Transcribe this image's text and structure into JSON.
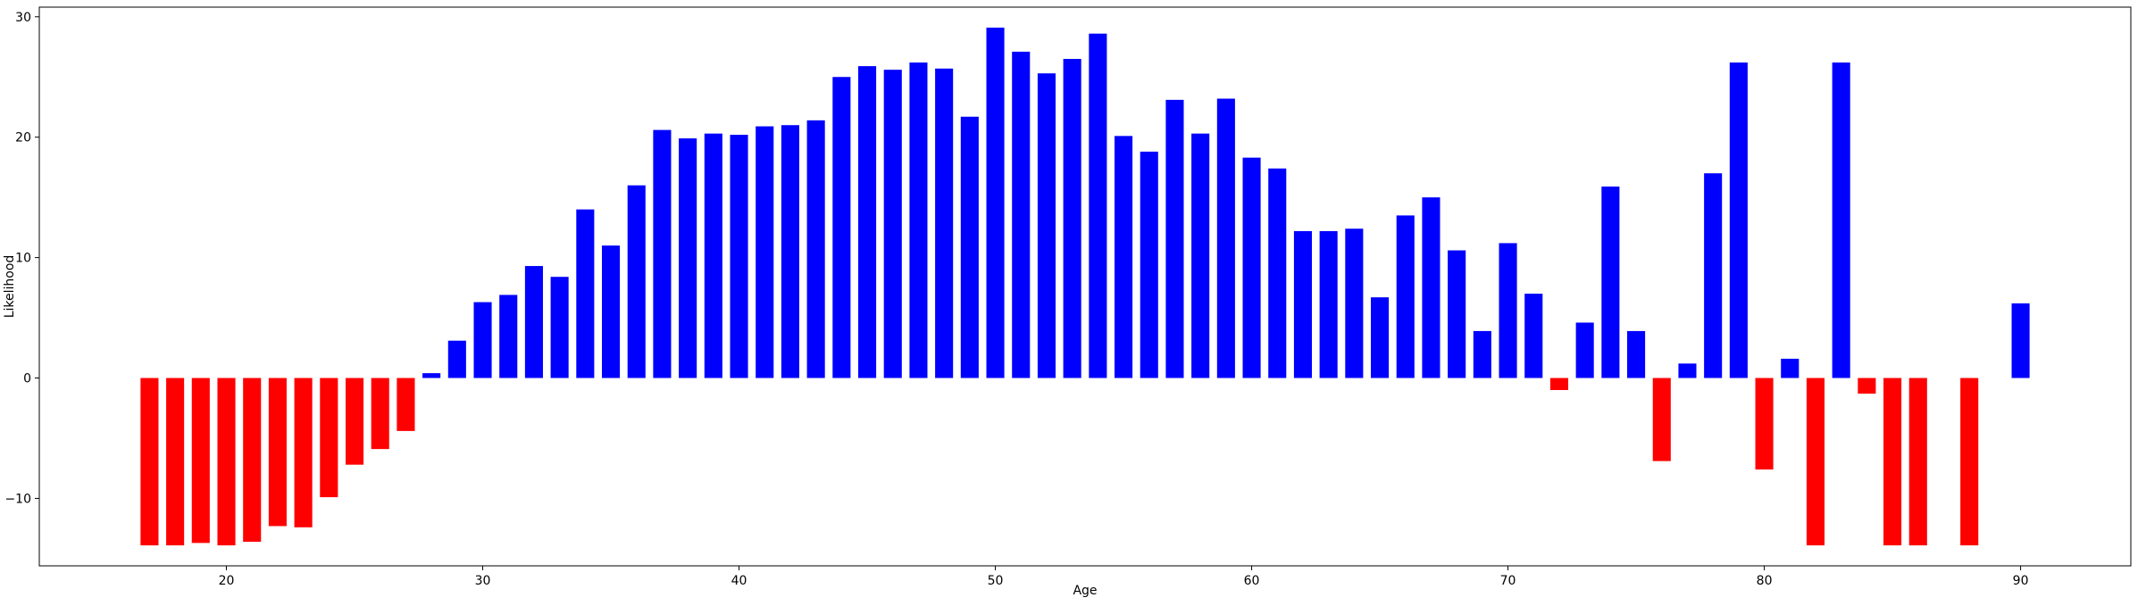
{
  "chart_data": {
    "type": "bar",
    "xlabel": "Age",
    "ylabel": "Likelihood",
    "xlim": [
      12.7,
      94.3
    ],
    "ylim": [
      -15.6,
      30.8
    ],
    "xticks": [
      20,
      30,
      40,
      50,
      60,
      70,
      80,
      90
    ],
    "yticks": [
      -10,
      0,
      10,
      20,
      30
    ],
    "ytick_labels": [
      "−10",
      "0",
      "10",
      "20",
      "30"
    ],
    "grid": false,
    "colors": {
      "positive": "#0000ff",
      "negative": "#ff0000"
    },
    "x": [
      17,
      18,
      19,
      20,
      21,
      22,
      23,
      24,
      25,
      26,
      27,
      28,
      29,
      30,
      31,
      32,
      33,
      34,
      35,
      36,
      37,
      38,
      39,
      40,
      41,
      42,
      43,
      44,
      45,
      46,
      47,
      48,
      49,
      50,
      51,
      52,
      53,
      54,
      55,
      56,
      57,
      58,
      59,
      60,
      61,
      62,
      63,
      64,
      65,
      66,
      67,
      68,
      69,
      70,
      71,
      72,
      73,
      74,
      75,
      76,
      77,
      78,
      79,
      80,
      81,
      82,
      83,
      84,
      85,
      86,
      88,
      90
    ],
    "values": [
      -13.9,
      -13.9,
      -13.7,
      -13.9,
      -13.6,
      -12.3,
      -12.4,
      -9.9,
      -7.2,
      -5.9,
      -4.4,
      0.4,
      3.1,
      6.3,
      6.9,
      9.3,
      8.4,
      14.0,
      11.0,
      16.0,
      20.6,
      19.9,
      20.3,
      20.2,
      20.9,
      21.0,
      21.4,
      25.0,
      25.9,
      25.6,
      26.2,
      25.7,
      21.7,
      29.1,
      27.1,
      25.3,
      26.5,
      28.6,
      20.1,
      18.8,
      23.1,
      20.3,
      23.2,
      18.3,
      17.4,
      12.2,
      12.2,
      12.4,
      6.7,
      13.5,
      15.0,
      10.6,
      3.9,
      11.2,
      7.0,
      -1.0,
      4.6,
      15.9,
      3.9,
      -6.9,
      1.2,
      17.0,
      26.2,
      -7.6,
      1.6,
      -13.9,
      26.2,
      -1.3,
      -13.9,
      -13.9,
      -13.9,
      6.2
    ]
  }
}
